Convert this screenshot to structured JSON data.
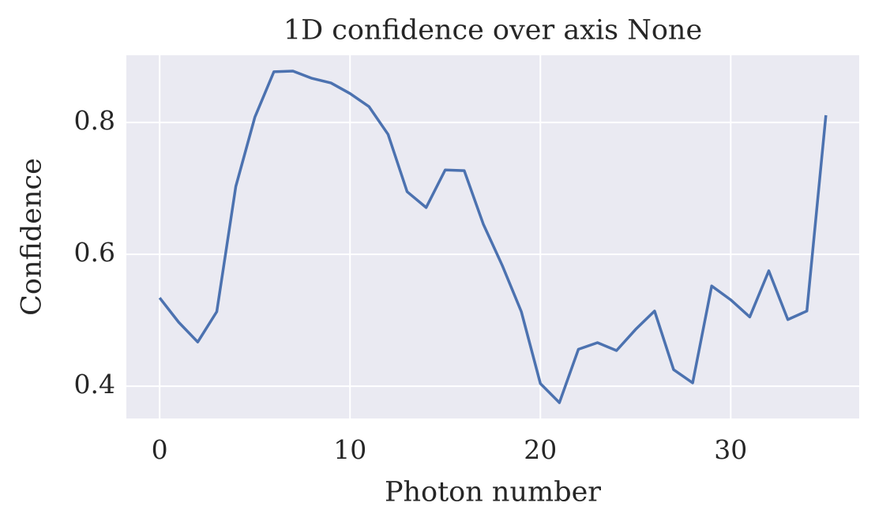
{
  "chart_data": {
    "type": "line",
    "title": "1D confidence over axis None",
    "xlabel": "Photon number",
    "ylabel": "Confidence",
    "x": [
      0,
      1,
      2,
      3,
      4,
      5,
      6,
      7,
      8,
      9,
      10,
      11,
      12,
      13,
      14,
      15,
      16,
      17,
      18,
      19,
      20,
      21,
      22,
      23,
      24,
      25,
      26,
      27,
      28,
      29,
      30,
      31,
      32,
      33,
      34,
      35
    ],
    "series": [
      {
        "color": "#4c72b0",
        "values": [
          0.534,
          0.497,
          0.467,
          0.513,
          0.703,
          0.808,
          0.877,
          0.878,
          0.867,
          0.86,
          0.844,
          0.824,
          0.782,
          0.695,
          0.671,
          0.728,
          0.727,
          0.646,
          0.583,
          0.513,
          0.404,
          0.375,
          0.456,
          0.466,
          0.454,
          0.486,
          0.514,
          0.425,
          0.405,
          0.552,
          0.531,
          0.505,
          0.575,
          0.501,
          0.514,
          0.811
        ]
      }
    ],
    "xlim": [
      -1.75,
      36.75
    ],
    "xticks": [
      0,
      10,
      20,
      30
    ],
    "ylim": [
      0.351,
      0.902
    ],
    "yticks": [
      0.4,
      0.6,
      0.8
    ],
    "grid": true
  }
}
